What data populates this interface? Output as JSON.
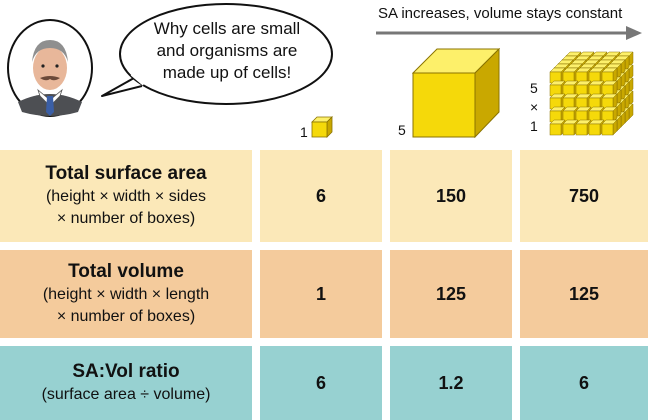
{
  "speech_bubble": {
    "line1": "Why cells are small",
    "line2": "and organisms are",
    "line3": "made up of cells!"
  },
  "arrow_label": "SA increases, volume stays constant",
  "cubes": {
    "small_label": "1",
    "large_label": "5",
    "many_label_top": "5",
    "many_label_mid": "×",
    "many_label_bottom": "1"
  },
  "colors": {
    "surface_row": "#fbe8b8",
    "volume_row": "#f4cb9c",
    "ratio_row": "#97d1d1",
    "cube_face": "#f5d90a",
    "cube_top": "#fdf06a",
    "cube_side": "#c9a800"
  },
  "rows": [
    {
      "title": "Total surface area",
      "sub1": "(height × width × sides",
      "sub2": "× number of boxes)",
      "values": [
        "6",
        "150",
        "750"
      ]
    },
    {
      "title": "Total volume",
      "sub1": "(height × width × length",
      "sub2": "× number of boxes)",
      "values": [
        "1",
        "125",
        "125"
      ]
    },
    {
      "title": "SA:Vol ratio",
      "sub1": "(surface area ÷ volume)",
      "values": [
        "6",
        "1.2",
        "6"
      ]
    }
  ]
}
